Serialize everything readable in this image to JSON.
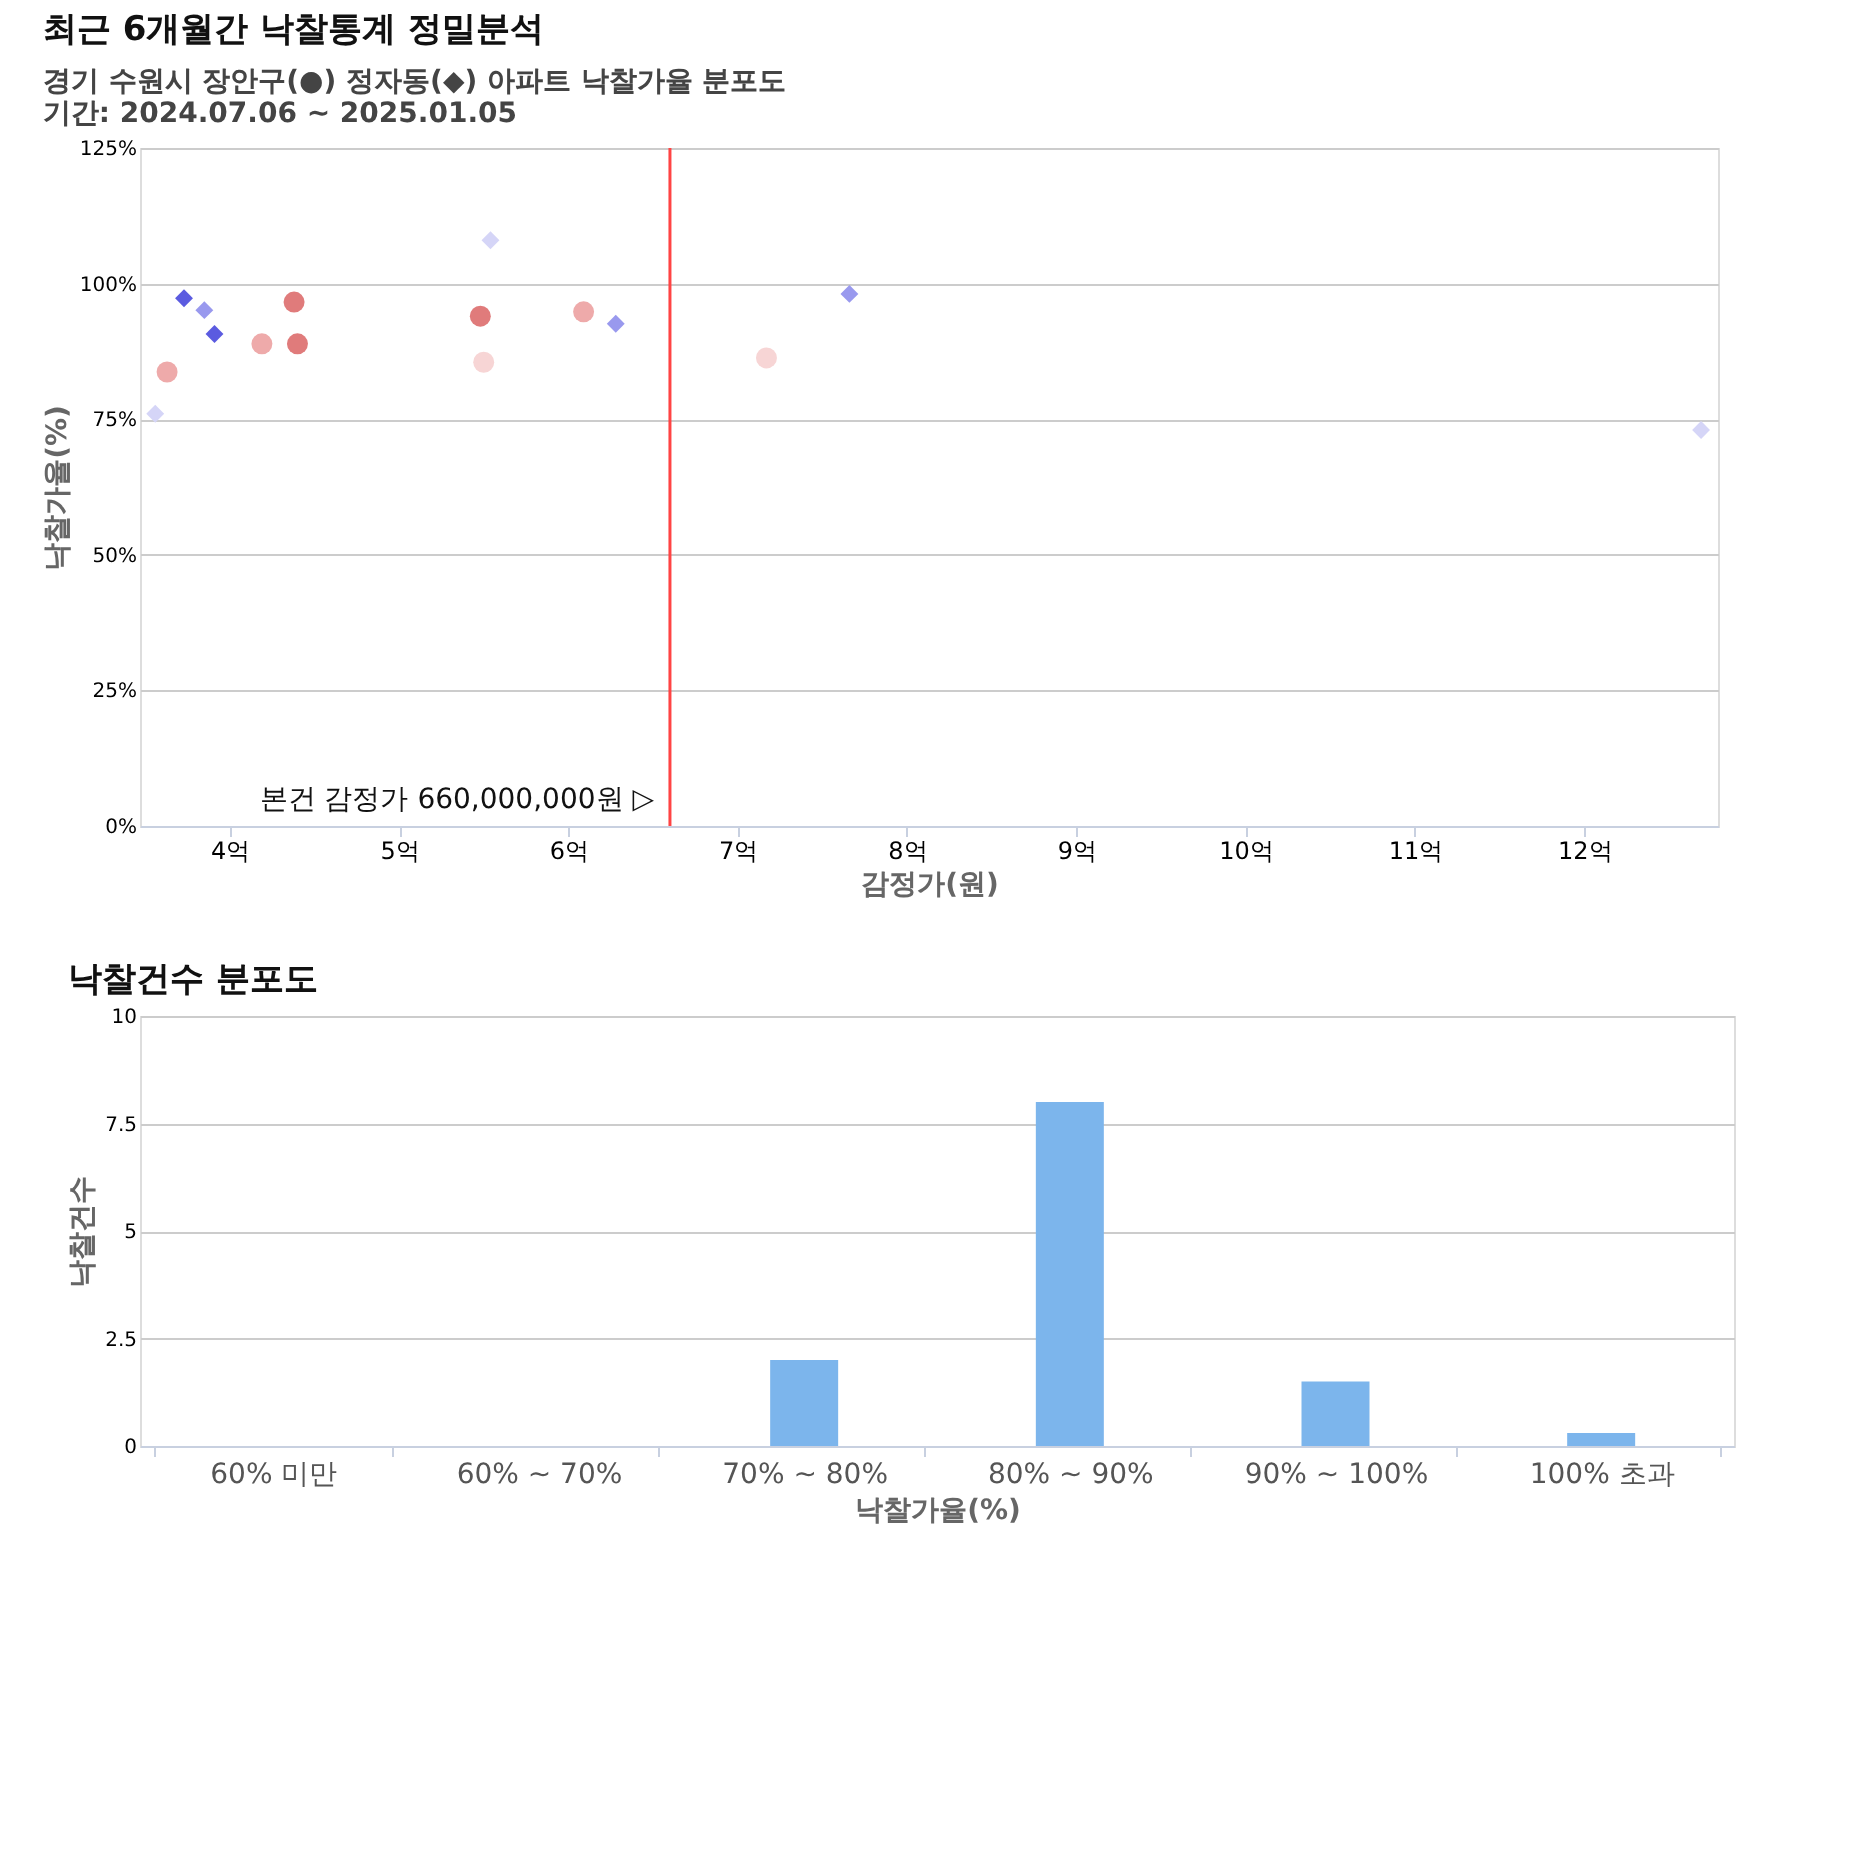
{
  "chart_data": [
    {
      "type": "scatter",
      "title": "최근 6개월간 낙찰통계 정밀분석",
      "subtitle": "경기 수원시 장안구(●) 정자동(◆) 아파트 낙찰가율 분포도",
      "annotations": [
        "기간: 2024.07.06 ~ 2025.01.05"
      ],
      "xlabel": "감정가(원)",
      "ylabel": "낙찰가율(%)",
      "xlim": [
        3.47,
        12.79
      ],
      "xticks": [
        {
          "value": 4,
          "label": "4억"
        },
        {
          "value": 5,
          "label": "5억"
        },
        {
          "value": 6,
          "label": "6억"
        },
        {
          "value": 7,
          "label": "7억"
        },
        {
          "value": 8,
          "label": "8억"
        },
        {
          "value": 9,
          "label": "9억"
        },
        {
          "value": 10,
          "label": "10억"
        },
        {
          "value": 11,
          "label": "11억"
        },
        {
          "value": 12,
          "label": "12억"
        }
      ],
      "ylim": [
        0,
        125
      ],
      "yticks": [
        {
          "value": 0,
          "label": "0%"
        },
        {
          "value": 25,
          "label": "25%"
        },
        {
          "value": 50,
          "label": "50%"
        },
        {
          "value": 75,
          "label": "75%"
        },
        {
          "value": 100,
          "label": "100%"
        },
        {
          "value": 125,
          "label": "125%"
        }
      ],
      "grid": "y",
      "series": [
        {
          "marker": "circle",
          "x": [
            3.63,
            4.19,
            4.38,
            4.4,
            5.48,
            5.5,
            6.09,
            7.17
          ],
          "values": [
            83.7,
            88.9,
            96.6,
            88.9,
            94.0,
            85.5,
            94.8,
            86.3
          ],
          "colors": [
            "#eeaaaa",
            "#eeaaaa",
            "#e07b7b",
            "#e07b7b",
            "#e07b7b",
            "#f7d5d5",
            "#eeaaaa",
            "#f7d5d5"
          ]
        },
        {
          "marker": "diamond",
          "x": [
            3.56,
            3.73,
            3.85,
            3.91,
            5.54,
            6.28,
            7.66,
            12.69
          ],
          "values": [
            76.0,
            97.3,
            95.1,
            90.7,
            108.0,
            92.6,
            98.1,
            73.0
          ],
          "colors": [
            "#d5d5f7",
            "#5b5be0",
            "#9999ee",
            "#5b5be0",
            "#d5d5f7",
            "#9999ee",
            "#9999ee",
            "#d5d5f7"
          ]
        }
      ],
      "ref_lines": [
        {
          "axis": "x",
          "value": 6.6,
          "label": "본건 감정가 660,000,000원 ▷",
          "color": "#ff4444"
        }
      ]
    },
    {
      "type": "bar",
      "title": "낙찰건수 분포도",
      "xlabel": "낙찰가율(%)",
      "ylabel": "낙찰건수",
      "categories": [
        "60% 미만",
        "60% ~ 70%",
        "70% ~ 80%",
        "80% ~ 90%",
        "90% ~ 100%",
        "100% 초과"
      ],
      "values": [
        0,
        0,
        2.0,
        8.0,
        1.5,
        0.3
      ],
      "color": "#7cb5ec",
      "ylim": [
        0,
        10
      ],
      "yticks": [
        0,
        2.5,
        5,
        7.5,
        10
      ],
      "grid": "y"
    }
  ]
}
